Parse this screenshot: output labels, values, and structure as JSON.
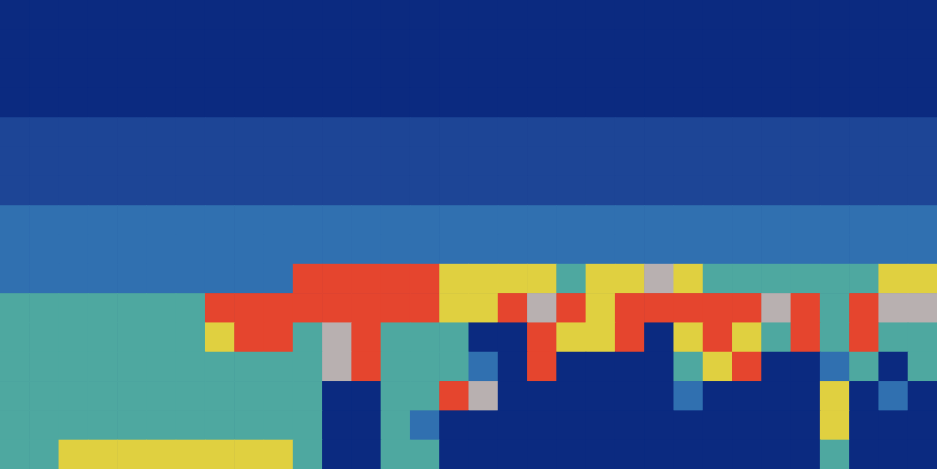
{
  "chart_data": {
    "type": "heatmap",
    "tick_labels": false,
    "zlim": [
      0,
      6
    ],
    "cells": [
      [
        0,
        0,
        0,
        0,
        0,
        0,
        0,
        0,
        0,
        0,
        0,
        0,
        0,
        0,
        0,
        0,
        0,
        0,
        0,
        0,
        0,
        0,
        0,
        0,
        0,
        0,
        0,
        0,
        0,
        0,
        0,
        0
      ],
      [
        0,
        0,
        0,
        0,
        0,
        0,
        0,
        0,
        0,
        0,
        0,
        0,
        0,
        0,
        0,
        0,
        0,
        0,
        0,
        0,
        0,
        0,
        0,
        0,
        0,
        0,
        0,
        0,
        0,
        0,
        0,
        0
      ],
      [
        0,
        0,
        0,
        0,
        0,
        0,
        0,
        0,
        0,
        0,
        0,
        0,
        0,
        0,
        0,
        0,
        0,
        0,
        0,
        0,
        0,
        0,
        0,
        0,
        0,
        0,
        0,
        0,
        0,
        0,
        0,
        0
      ],
      [
        0,
        0,
        0,
        0,
        0,
        0,
        0,
        0,
        0,
        0,
        0,
        0,
        0,
        0,
        0,
        0,
        0,
        0,
        0,
        0,
        0,
        0,
        0,
        0,
        0,
        0,
        0,
        0,
        0,
        0,
        0,
        0
      ],
      [
        1,
        1,
        1,
        1,
        1,
        1,
        1,
        1,
        1,
        1,
        1,
        1,
        1,
        1,
        1,
        1,
        1,
        1,
        1,
        1,
        1,
        1,
        1,
        1,
        1,
        1,
        1,
        1,
        1,
        1,
        1,
        1
      ],
      [
        1,
        1,
        1,
        1,
        1,
        1,
        1,
        1,
        1,
        1,
        1,
        1,
        1,
        1,
        1,
        1,
        1,
        1,
        1,
        1,
        1,
        1,
        1,
        1,
        1,
        1,
        1,
        1,
        1,
        1,
        1,
        1
      ],
      [
        1,
        1,
        1,
        1,
        1,
        1,
        1,
        1,
        1,
        1,
        1,
        1,
        1,
        1,
        1,
        1,
        1,
        1,
        1,
        1,
        1,
        1,
        1,
        1,
        1,
        1,
        1,
        1,
        1,
        1,
        1,
        1
      ],
      [
        2,
        2,
        2,
        2,
        2,
        2,
        2,
        2,
        2,
        2,
        2,
        2,
        2,
        2,
        2,
        2,
        2,
        2,
        2,
        2,
        2,
        2,
        2,
        2,
        2,
        2,
        2,
        2,
        2,
        2,
        2,
        2
      ],
      [
        2,
        2,
        2,
        2,
        2,
        2,
        2,
        2,
        2,
        2,
        2,
        2,
        2,
        2,
        2,
        2,
        2,
        2,
        2,
        2,
        2,
        2,
        2,
        2,
        2,
        2,
        2,
        2,
        2,
        2,
        2,
        2
      ],
      [
        2,
        2,
        2,
        2,
        2,
        2,
        2,
        2,
        2,
        2,
        5,
        5,
        5,
        5,
        5,
        4,
        4,
        4,
        4,
        3,
        4,
        4,
        6,
        4,
        3,
        3,
        3,
        3,
        3,
        3,
        4,
        4
      ],
      [
        3,
        3,
        3,
        3,
        3,
        3,
        3,
        5,
        5,
        5,
        5,
        5,
        5,
        5,
        5,
        4,
        4,
        5,
        6,
        5,
        4,
        5,
        5,
        5,
        5,
        5,
        6,
        5,
        3,
        5,
        6,
        6
      ],
      [
        3,
        3,
        3,
        3,
        3,
        3,
        3,
        4,
        5,
        5,
        3,
        6,
        5,
        3,
        3,
        3,
        0,
        0,
        5,
        4,
        4,
        5,
        0,
        4,
        5,
        4,
        3,
        5,
        3,
        5,
        3,
        3
      ],
      [
        3,
        3,
        3,
        3,
        3,
        3,
        3,
        3,
        3,
        3,
        3,
        6,
        5,
        3,
        3,
        3,
        2,
        0,
        5,
        0,
        0,
        0,
        0,
        3,
        4,
        5,
        0,
        0,
        2,
        3,
        0,
        3
      ],
      [
        3,
        3,
        3,
        3,
        3,
        3,
        3,
        3,
        3,
        3,
        3,
        0,
        0,
        3,
        3,
        5,
        6,
        0,
        0,
        0,
        0,
        0,
        0,
        2,
        0,
        0,
        0,
        0,
        4,
        0,
        2,
        0
      ],
      [
        3,
        3,
        3,
        3,
        3,
        3,
        3,
        3,
        3,
        3,
        3,
        0,
        0,
        3,
        2,
        0,
        0,
        0,
        0,
        0,
        0,
        0,
        0,
        0,
        0,
        0,
        0,
        0,
        4,
        0,
        0,
        0
      ],
      [
        3,
        3,
        4,
        4,
        4,
        4,
        4,
        4,
        4,
        4,
        3,
        0,
        0,
        3,
        3,
        0,
        0,
        0,
        0,
        0,
        0,
        0,
        0,
        0,
        0,
        0,
        0,
        0,
        3,
        0,
        0,
        0
      ]
    ]
  }
}
